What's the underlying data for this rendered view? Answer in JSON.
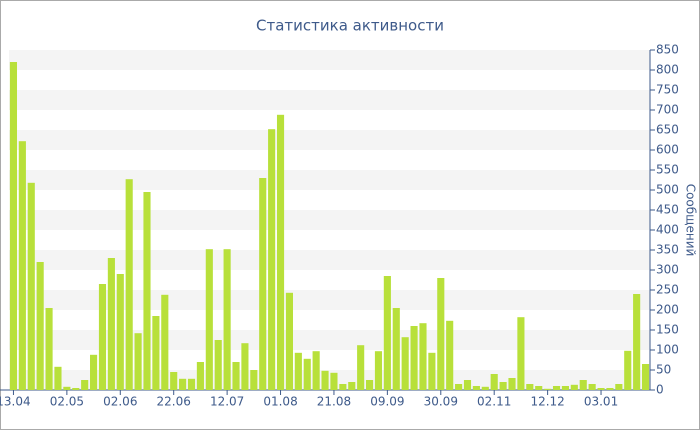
{
  "chart_data": {
    "type": "bar",
    "title": "Статистика активности",
    "y_label": "Сообщений",
    "categories": [
      "13.04",
      null,
      null,
      null,
      null,
      null,
      "02.05",
      null,
      null,
      null,
      null,
      null,
      "02.06",
      null,
      null,
      null,
      null,
      null,
      "22.06",
      null,
      null,
      null,
      null,
      null,
      "12.07",
      null,
      null,
      null,
      null,
      null,
      "01.08",
      null,
      null,
      null,
      null,
      null,
      "21.08",
      null,
      null,
      null,
      null,
      null,
      "09.09",
      null,
      null,
      null,
      null,
      null,
      "30.09",
      null,
      null,
      null,
      null,
      null,
      "02.11",
      null,
      null,
      null,
      null,
      null,
      "12.12",
      null,
      null,
      null,
      null,
      null,
      "03.01",
      null,
      null,
      null,
      null,
      null
    ],
    "values": [
      820,
      622,
      518,
      320,
      205,
      58,
      8,
      5,
      25,
      88,
      265,
      330,
      290,
      527,
      142,
      495,
      185,
      238,
      45,
      28,
      28,
      70,
      352,
      125,
      352,
      70,
      117,
      50,
      530,
      652,
      688,
      243,
      93,
      78,
      97,
      48,
      43,
      15,
      20,
      112,
      25,
      97,
      285,
      205,
      132,
      160,
      167,
      93,
      280,
      173,
      15,
      25,
      10,
      8,
      40,
      20,
      30,
      182,
      15,
      10,
      3,
      10,
      10,
      13,
      25,
      15,
      5,
      5,
      15,
      98,
      240,
      65
    ],
    "color": "#b8e03a",
    "ylim": [
      0,
      850
    ],
    "yticks": [
      0,
      50,
      100,
      150,
      200,
      250,
      300,
      350,
      400,
      450,
      500,
      550,
      600,
      650,
      700,
      750,
      800,
      850
    ],
    "grid": true
  }
}
